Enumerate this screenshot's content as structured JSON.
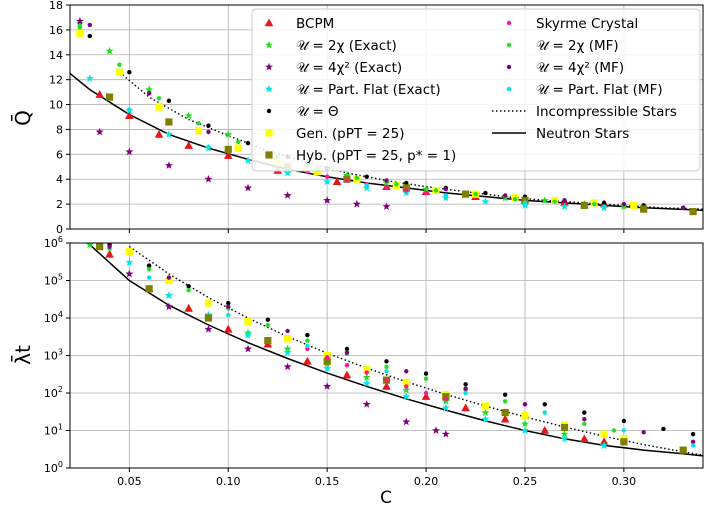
{
  "chart_data": [
    {
      "type": "scatter",
      "ylabel": "Q̄",
      "xlim": [
        0.02,
        0.34
      ],
      "ylim": [
        0,
        18
      ],
      "yscale": "linear",
      "grid": true,
      "legend_position": "upper-right",
      "x_ticks": [
        0.05,
        0.1,
        0.15,
        0.2,
        0.25,
        0.3
      ],
      "y_ticks": [
        0,
        2,
        4,
        6,
        8,
        10,
        12,
        14,
        16,
        18
      ],
      "y_tick_labels": [
        "0",
        "2",
        "4",
        "6",
        "8",
        "10",
        "12",
        "14",
        "16",
        "18"
      ],
      "legend_left": [
        {
          "label": "BCPM",
          "marker": "triangle",
          "color": "#e8141c"
        },
        {
          "label": "𝒰 = 2χ (Exact)",
          "marker": "star",
          "color": "#22dd22"
        },
        {
          "label": "𝒰 = 4χ² (Exact)",
          "marker": "star",
          "color": "#800080"
        },
        {
          "label": "𝒰 = Part. Flat (Exact)",
          "marker": "star",
          "color": "#00e5e5"
        },
        {
          "label": "𝒰 = Θ",
          "marker": "dot",
          "color": "#000000"
        },
        {
          "label": "Gen. (pPT = 25)",
          "marker": "square",
          "color": "#ffff00"
        },
        {
          "label": "Hyb. (pPT = 25, p* = 1)",
          "marker": "square",
          "color": "#808000"
        }
      ],
      "legend_right": [
        {
          "label": "Skyrme Crystal",
          "marker": "dot",
          "color": "#ff1493"
        },
        {
          "label": "𝒰 = 2χ (MF)",
          "marker": "dot",
          "color": "#22dd22"
        },
        {
          "label": "𝒰 = 4χ² (MF)",
          "marker": "dot",
          "color": "#800080"
        },
        {
          "label": "𝒰 = Part. Flat (MF)",
          "marker": "dot",
          "color": "#00e5e5"
        },
        {
          "label": "Incompressible Stars",
          "marker": "dotted-line",
          "color": "#000000"
        },
        {
          "label": "Neutron Stars",
          "marker": "solid-line",
          "color": "#000000"
        }
      ],
      "series": [
        {
          "name": "BCPM",
          "x": [
            0.035,
            0.05,
            0.065,
            0.08,
            0.1,
            0.125,
            0.155,
            0.18,
            0.2,
            0.225,
            0.25,
            0.27,
            0.29
          ],
          "y": [
            10.8,
            9.1,
            7.6,
            6.7,
            5.9,
            4.7,
            3.8,
            3.4,
            3.0,
            2.6,
            2.4,
            2.1,
            2.0
          ]
        },
        {
          "name": "𝒰 = 2χ (Exact)",
          "x": [
            0.025,
            0.04,
            0.06,
            0.08,
            0.1,
            0.12,
            0.14,
            0.16,
            0.18,
            0.2,
            0.22,
            0.24,
            0.26,
            0.28,
            0.3
          ],
          "y": [
            16.5,
            14.3,
            11.2,
            9.1,
            7.6,
            6.1,
            5.1,
            4.3,
            3.7,
            3.2,
            2.8,
            2.5,
            2.3,
            2.0,
            1.8
          ]
        },
        {
          "name": "𝒰 = 4χ² (Exact)",
          "x": [
            0.025,
            0.035,
            0.05,
            0.07,
            0.09,
            0.11,
            0.13,
            0.15,
            0.165,
            0.18
          ],
          "y": [
            16.7,
            7.8,
            6.2,
            5.1,
            4.0,
            3.3,
            2.7,
            2.3,
            2.0,
            1.8
          ]
        },
        {
          "name": "𝒰 = Part. Flat (Exact)",
          "x": [
            0.03,
            0.05,
            0.07,
            0.09,
            0.11,
            0.13,
            0.15,
            0.17,
            0.19,
            0.21,
            0.23,
            0.25,
            0.27,
            0.29
          ],
          "y": [
            12.1,
            9.5,
            7.6,
            6.5,
            5.5,
            4.5,
            3.8,
            3.3,
            2.9,
            2.5,
            2.2,
            1.9,
            1.8,
            1.7
          ]
        },
        {
          "name": "𝒰 = Θ",
          "x": [
            0.03,
            0.05,
            0.07,
            0.09,
            0.11,
            0.13,
            0.15,
            0.17,
            0.19,
            0.21,
            0.23,
            0.25,
            0.27,
            0.29,
            0.31,
            0.33
          ],
          "y": [
            15.5,
            12.6,
            10.3,
            8.3,
            6.9,
            5.8,
            4.9,
            4.2,
            3.7,
            3.3,
            2.9,
            2.6,
            2.3,
            2.1,
            1.9,
            1.7
          ]
        },
        {
          "name": "Gen. (pPT = 25)",
          "x": [
            0.025,
            0.045,
            0.065,
            0.085,
            0.105,
            0.125,
            0.145,
            0.165,
            0.185,
            0.205,
            0.225,
            0.245,
            0.265,
            0.285,
            0.305
          ],
          "y": [
            15.7,
            12.6,
            9.8,
            7.9,
            6.5,
            5.4,
            4.6,
            4.0,
            3.5,
            3.1,
            2.8,
            2.5,
            2.3,
            2.1,
            1.9
          ]
        },
        {
          "name": "Hyb. (pPT = 25, p* = 1)",
          "x": [
            0.04,
            0.07,
            0.1,
            0.13,
            0.16,
            0.19,
            0.22,
            0.25,
            0.28,
            0.31,
            0.335
          ],
          "y": [
            10.6,
            8.6,
            6.4,
            5.0,
            4.0,
            3.3,
            2.8,
            2.3,
            1.9,
            1.6,
            1.4
          ]
        },
        {
          "name": "Skyrme Crystal",
          "x": [
            0.14,
            0.15,
            0.16,
            0.17,
            0.18,
            0.19,
            0.2,
            0.21
          ],
          "y": [
            4.6,
            4.2,
            3.9,
            3.6,
            3.3,
            3.1,
            2.9,
            2.7
          ]
        },
        {
          "name": "𝒰 = 2χ (MF)",
          "x": [
            0.025,
            0.045,
            0.065,
            0.085,
            0.105,
            0.125,
            0.145,
            0.165,
            0.185,
            0.205,
            0.225,
            0.245,
            0.265,
            0.285,
            0.3
          ],
          "y": [
            16.2,
            13.2,
            10.5,
            8.5,
            7.0,
            5.8,
            4.8,
            4.1,
            3.6,
            3.1,
            2.8,
            2.4,
            2.2,
            2.0,
            1.9
          ]
        },
        {
          "name": "𝒰 = 4χ² (MF)",
          "x": [
            0.03,
            0.06,
            0.09,
            0.12,
            0.15,
            0.18,
            0.21,
            0.24,
            0.27,
            0.3,
            0.33
          ],
          "y": [
            16.4,
            10.9,
            7.8,
            6.0,
            4.8,
            3.9,
            3.2,
            2.7,
            2.3,
            2.0,
            1.7
          ]
        },
        {
          "name": "𝒰 = Part. Flat (MF)",
          "x": [
            0.05,
            0.09,
            0.13,
            0.17,
            0.21,
            0.25,
            0.29
          ],
          "y": [
            9.6,
            6.6,
            4.6,
            3.5,
            2.7,
            2.1,
            1.8
          ]
        }
      ],
      "lines": [
        {
          "name": "Incompressible Stars",
          "style": "dotted",
          "x": [
            0.045,
            0.06,
            0.08,
            0.1,
            0.12,
            0.14,
            0.16,
            0.18,
            0.2,
            0.22,
            0.24,
            0.26,
            0.28,
            0.3,
            0.32,
            0.34
          ],
          "y": [
            12.6,
            10.6,
            8.8,
            7.5,
            6.3,
            5.3,
            4.5,
            3.9,
            3.4,
            3.0,
            2.6,
            2.3,
            2.1,
            1.9,
            1.7,
            1.6
          ]
        },
        {
          "name": "Neutron Stars",
          "style": "solid",
          "x": [
            0.02,
            0.03,
            0.05,
            0.07,
            0.09,
            0.11,
            0.13,
            0.15,
            0.17,
            0.19,
            0.21,
            0.23,
            0.25,
            0.27,
            0.29,
            0.31,
            0.34
          ],
          "y": [
            12.5,
            11.2,
            9.2,
            7.6,
            6.5,
            5.6,
            4.8,
            4.2,
            3.7,
            3.3,
            2.9,
            2.6,
            2.3,
            2.1,
            1.9,
            1.7,
            1.5
          ]
        }
      ]
    },
    {
      "type": "scatter",
      "xlabel": "C",
      "ylabel": "λ̄t",
      "xlim": [
        0.02,
        0.34
      ],
      "ylim": [
        1,
        1000000
      ],
      "yscale": "log",
      "grid": true,
      "x_ticks": [
        0.05,
        0.1,
        0.15,
        0.2,
        0.25,
        0.3
      ],
      "x_tick_labels": [
        "0.05",
        "0.10",
        "0.15",
        "0.20",
        "0.25",
        "0.30"
      ],
      "y_ticks": [
        1,
        10,
        100,
        1000,
        10000,
        100000,
        1000000
      ],
      "y_tick_labels": [
        "10^0",
        "10^1",
        "10^2",
        "10^3",
        "10^4",
        "10^5",
        "10^6"
      ],
      "series": [
        {
          "name": "BCPM",
          "x": [
            0.04,
            0.06,
            0.08,
            0.1,
            0.12,
            0.14,
            0.16,
            0.18,
            0.2,
            0.22,
            0.24,
            0.26,
            0.28,
            0.29
          ],
          "y": [
            500000,
            60000,
            18000,
            5000,
            2000,
            700,
            300,
            150,
            80,
            40,
            20,
            10,
            6,
            5
          ]
        },
        {
          "name": "𝒰 = 2χ (Exact)",
          "x": [
            0.03,
            0.05,
            0.07,
            0.09,
            0.11,
            0.13,
            0.15,
            0.17,
            0.19,
            0.21,
            0.23,
            0.25,
            0.27,
            0.29
          ],
          "y": [
            900000,
            150000,
            40000,
            12000,
            4000,
            1500,
            600,
            260,
            120,
            60,
            30,
            15,
            8,
            4
          ]
        },
        {
          "name": "𝒰 = 4χ² (Exact)",
          "x": [
            0.05,
            0.07,
            0.09,
            0.11,
            0.13,
            0.15,
            0.17,
            0.19,
            0.205,
            0.21
          ],
          "y": [
            150000,
            20000,
            5000,
            1500,
            500,
            150,
            50,
            17,
            10,
            8
          ]
        },
        {
          "name": "𝒰 = Part. Flat (Exact)",
          "x": [
            0.05,
            0.07,
            0.09,
            0.11,
            0.13,
            0.15,
            0.17,
            0.19,
            0.21,
            0.23,
            0.25,
            0.27,
            0.29
          ],
          "y": [
            300000,
            40000,
            12000,
            3500,
            1200,
            450,
            180,
            80,
            40,
            20,
            10,
            6,
            4
          ]
        },
        {
          "name": "𝒰 = Θ",
          "x": [
            0.04,
            0.06,
            0.08,
            0.1,
            0.12,
            0.14,
            0.16,
            0.18,
            0.2,
            0.22,
            0.24,
            0.26,
            0.28,
            0.3,
            0.32,
            0.335
          ],
          "y": [
            900000,
            250000,
            70000,
            25000,
            9000,
            3500,
            1500,
            700,
            330,
            170,
            90,
            50,
            30,
            18,
            11,
            8
          ]
        },
        {
          "name": "Gen. (pPT = 25)",
          "x": [
            0.05,
            0.07,
            0.09,
            0.11,
            0.13,
            0.15,
            0.17,
            0.19,
            0.21,
            0.23,
            0.25,
            0.27,
            0.29,
            0.3
          ],
          "y": [
            600000,
            100000,
            25000,
            8000,
            2800,
            1000,
            420,
            190,
            90,
            45,
            25,
            14,
            8,
            6
          ]
        },
        {
          "name": "Hyb. (pPT = 25, p* = 1)",
          "x": [
            0.035,
            0.06,
            0.09,
            0.12,
            0.15,
            0.18,
            0.21,
            0.24,
            0.27,
            0.3,
            0.33
          ],
          "y": [
            800000,
            60000,
            10000,
            2500,
            700,
            220,
            80,
            30,
            12,
            5,
            3
          ]
        },
        {
          "name": "Skyrme Crystal",
          "x": [
            0.14,
            0.15,
            0.16,
            0.17,
            0.18,
            0.19,
            0.2,
            0.21
          ],
          "y": [
            1500,
            900,
            550,
            350,
            220,
            150,
            100,
            70
          ]
        },
        {
          "name": "𝒰 = 2χ (MF)",
          "x": [
            0.04,
            0.06,
            0.08,
            0.1,
            0.12,
            0.14,
            0.16,
            0.18,
            0.2,
            0.22,
            0.24,
            0.26,
            0.28,
            0.295
          ],
          "y": [
            700000,
            200000,
            55000,
            18000,
            6500,
            2500,
            1100,
            500,
            240,
            120,
            60,
            30,
            15,
            10
          ]
        },
        {
          "name": "𝒰 = 4χ² (MF)",
          "x": [
            0.04,
            0.07,
            0.1,
            0.13,
            0.16,
            0.19,
            0.22,
            0.25,
            0.28,
            0.31,
            0.335
          ],
          "y": [
            800000,
            120000,
            20000,
            4500,
            1200,
            380,
            130,
            50,
            20,
            9,
            5
          ]
        },
        {
          "name": "𝒰 = Part. Flat (MF)",
          "x": [
            0.06,
            0.1,
            0.14,
            0.18,
            0.22,
            0.26,
            0.3,
            0.335
          ],
          "y": [
            120000,
            12000,
            1800,
            380,
            100,
            30,
            10,
            4
          ]
        }
      ],
      "lines": [
        {
          "name": "Incompressible Stars",
          "style": "dotted",
          "x": [
            0.05,
            0.07,
            0.09,
            0.11,
            0.13,
            0.15,
            0.17,
            0.19,
            0.21,
            0.23,
            0.25,
            0.27,
            0.29,
            0.31,
            0.33,
            0.34
          ],
          "y": [
            800000,
            150000,
            35000,
            10000,
            3200,
            1150,
            460,
            200,
            92,
            45,
            23,
            12.5,
            7,
            4.2,
            2.7,
            2.2
          ]
        },
        {
          "name": "Neutron Stars",
          "style": "solid",
          "x": [
            0.03,
            0.05,
            0.07,
            0.09,
            0.11,
            0.13,
            0.15,
            0.17,
            0.19,
            0.21,
            0.23,
            0.25,
            0.27,
            0.29,
            0.31,
            0.33,
            0.34
          ],
          "y": [
            900000,
            100000,
            22000,
            6500,
            2200,
            830,
            340,
            150,
            70,
            35,
            18,
            10,
            6,
            4,
            3,
            2.4,
            2.1
          ]
        }
      ]
    }
  ]
}
